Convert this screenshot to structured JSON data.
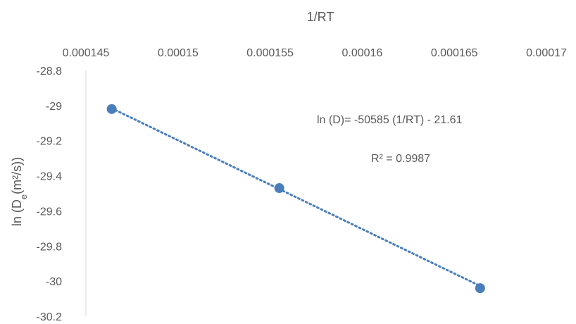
{
  "chart_data": {
    "type": "scatter",
    "xlabel": "1/RT",
    "ylabel_main": "ln (D",
    "ylabel_sub": "e",
    "ylabel_rest": "(m²/s))",
    "x_axis_position": "top",
    "y_reversed": true,
    "xlim": [
      0.000145,
      0.00017
    ],
    "ylim": [
      -30.2,
      -28.8
    ],
    "x_ticks": [
      "0.000145",
      "0.00015",
      "0.000155",
      "0.00016",
      "0.000165",
      "0.00017"
    ],
    "y_ticks": [
      "-28.8",
      "-29",
      "-29.2",
      "-29.4",
      "-29.6",
      "-29.8",
      "-30",
      "-30.2"
    ],
    "grid": false,
    "point_color": "#4a7ebb",
    "trendline_color": "#4a7ebb",
    "points": [
      {
        "x": 0.0001464,
        "y": -29.02
      },
      {
        "x": 0.0001555,
        "y": -29.47
      },
      {
        "x": 0.0001664,
        "y": -30.04
      }
    ],
    "trendline": {
      "slope": -50585,
      "intercept": -21.61
    },
    "equation": "ln (D)= -50585 (1/RT) - 21.61",
    "r_squared": "R² = 0.9987"
  }
}
